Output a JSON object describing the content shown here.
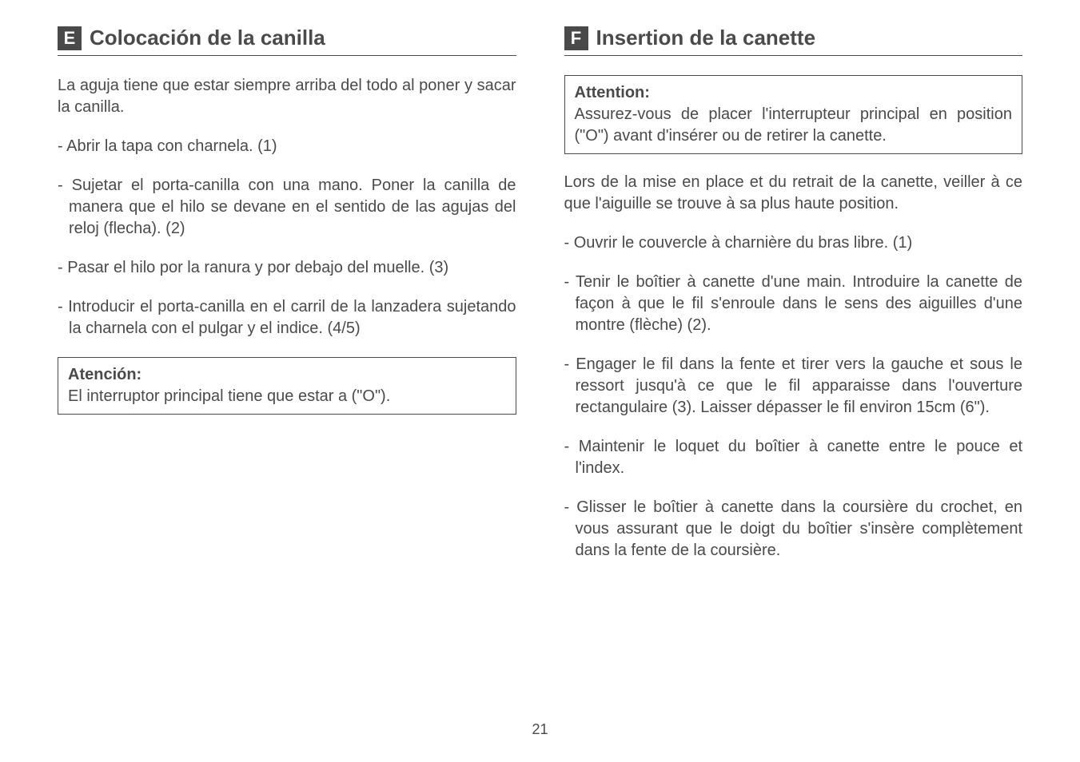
{
  "left": {
    "lang_letter": "E",
    "title": "Colocación de la canilla",
    "intro": "La aguja tiene que estar siempre arriba del todo al poner y sacar la canilla.",
    "items": [
      "- Abrir la tapa con charnela. (1)",
      "- Sujetar el porta-canilla con una mano. Poner la canilla de manera que el hilo se devane en el sentido de las agujas del reloj (flecha). (2)",
      "- Pasar el hilo por la ranura y por debajo del muelle. (3)",
      "- Introducir el porta-canilla en el carril de la lanzadera sujetando la charnela con el pulgar y el indice. (4/5)"
    ],
    "box_title": "Atención:",
    "box_body": "El interruptor principal tiene que estar a (\"O\")."
  },
  "right": {
    "lang_letter": "F",
    "title": "Insertion de la canette",
    "box_title": "Attention:",
    "box_body": "Assurez-vous de placer l'interrupteur principal en position (\"O\") avant d'insérer ou de retirer la canette.",
    "intro": "Lors de la mise en place et du retrait de la canette, veiller à ce que l'aiguille se trouve à sa plus haute position.",
    "items": [
      "- Ouvrir le couvercle à charnière du bras libre. (1)",
      "- Tenir le boîtier à canette d'une main. Introduire la canette de façon à que le fil s'enroule dans le sens des aiguilles d'une montre (flèche) (2).",
      "- Engager le fil dans la fente et tirer vers la gauche et sous le ressort jusqu'à ce que le fil apparaisse dans l'ouverture rectangulaire (3). Laisser dépasser le fil environ 15cm (6\").",
      "- Maintenir le loquet du boîtier à canette entre le pouce et l'index.",
      "- Glisser le boîtier à canette dans la coursière du crochet, en vous assurant que le doigt du boîtier s'insère  complètement dans la fente de la coursière."
    ]
  },
  "page_number": "21"
}
